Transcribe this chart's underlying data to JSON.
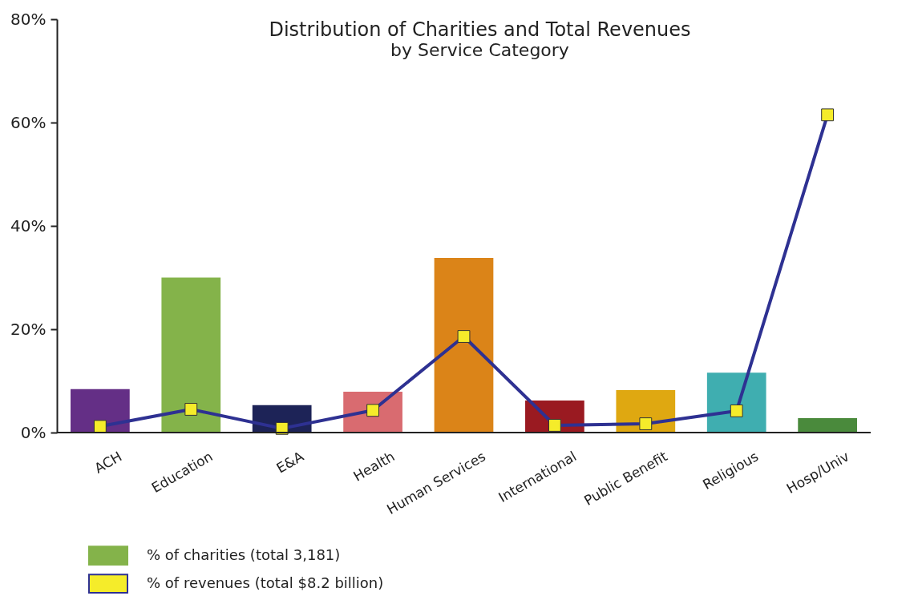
{
  "chart_data": {
    "type": "bar",
    "title": "Distribution of Charities and Total Revenues",
    "subtitle": "by Service Category",
    "categories": [
      "ACH",
      "Education",
      "E&A",
      "Health",
      "Human Services",
      "International",
      "Public Benefit",
      "Religious",
      "Hosp/Univ"
    ],
    "series": [
      {
        "name": "% of charities (total 3,181)",
        "color": "#84b34a",
        "colors": [
          "#642f86",
          "#84b34a",
          "#1d2357",
          "#d96b70",
          "#db8418",
          "#9a1a21",
          "#dfa811",
          "#3faeb0",
          "#4a8a3c"
        ],
        "values": [
          8.4,
          30,
          5.3,
          7.9,
          33.8,
          6.2,
          8.2,
          11.6,
          2.8
        ]
      },
      {
        "name": "% of revenues (total $8.2 billion)",
        "type": "line",
        "color": "#2e3192",
        "colors": [
          "#f5ec2a",
          "#f5ec2a",
          "#f5ec2a",
          "#f5ec2a",
          "#f5ec2a",
          "#f5ec2a",
          "#f5ec2a",
          "#f5ec2a",
          "#f5ec2a"
        ],
        "marker": "square",
        "values": [
          1.2,
          4.5,
          0.8,
          4.3,
          18.6,
          1.4,
          1.7,
          4.2,
          61.5
        ]
      }
    ],
    "ylim": [
      0,
      80
    ],
    "yticks": [
      {
        "value": 0,
        "label": "0%"
      },
      {
        "value": 20,
        "label": "20%"
      },
      {
        "value": 40,
        "label": "40%"
      },
      {
        "value": 60,
        "label": "60%"
      },
      {
        "value": 80,
        "label": "80%"
      }
    ],
    "grid": false,
    "legend": "bottom left"
  }
}
